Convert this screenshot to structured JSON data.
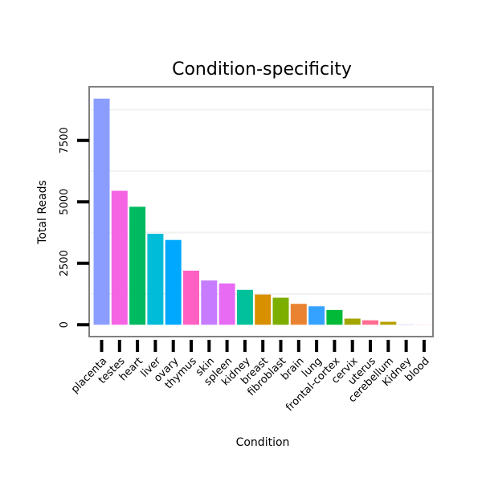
{
  "chart_data": {
    "type": "bar",
    "title": "Condition-specificity",
    "xlabel": "Condition",
    "ylabel": "Total Reads",
    "categories": [
      "placenta",
      "testes",
      "heart",
      "liver",
      "ovary",
      "thymus",
      "skin",
      "spleen",
      "kidney",
      "breast",
      "fibroblast",
      "brain",
      "lung",
      "frontal-cortex",
      "cervix",
      "uterus",
      "cerebellum",
      "Kidney",
      "blood"
    ],
    "values": [
      9200,
      5450,
      4800,
      3700,
      3450,
      2200,
      1800,
      1680,
      1420,
      1230,
      1100,
      850,
      750,
      600,
      250,
      180,
      120,
      10,
      5
    ],
    "colors": [
      "#8B9EFF",
      "#F564E3",
      "#00BA60",
      "#00BCD8",
      "#00A9FF",
      "#FF61C3",
      "#C77CFF",
      "#E76BF3",
      "#00C19A",
      "#D89000",
      "#7CAE00",
      "#EA8331",
      "#35A2FF",
      "#00BA38",
      "#A3A500",
      "#FF6C91",
      "#B8A000",
      "#9590FF",
      "#F8766D"
    ],
    "ylim": [
      -450,
      9650
    ],
    "yticks": [
      0,
      2500,
      5000,
      7500
    ],
    "ytick_labels": [
      "0",
      "2500",
      "5000",
      "7500"
    ],
    "grid": true
  }
}
